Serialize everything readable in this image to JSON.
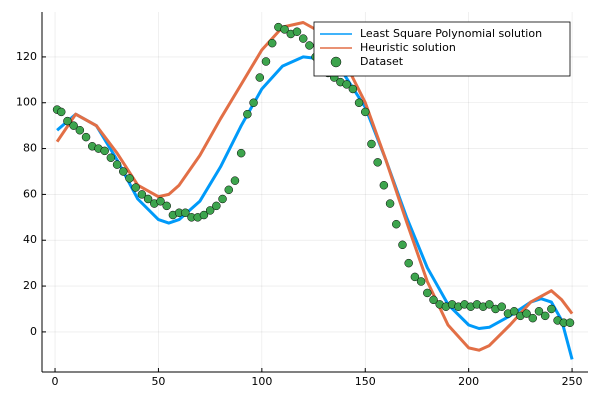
{
  "chart_data": {
    "type": "line",
    "xlim": [
      -6.3,
      257.7
    ],
    "ylim": [
      -17.5,
      139.6
    ],
    "xticks": [
      0,
      50,
      100,
      150,
      200,
      250
    ],
    "yticks": [
      0,
      20,
      40,
      60,
      80,
      100,
      120
    ],
    "grid": true,
    "legend": "top-right",
    "series": [
      {
        "name": "Least Square Polynomial solution",
        "mode": "line",
        "color": "#009af9",
        "x": [
          1,
          10,
          20,
          30,
          40,
          50,
          55,
          60,
          70,
          80,
          90,
          100,
          110,
          120,
          130,
          140,
          150,
          160,
          170,
          180,
          190,
          200,
          205,
          210,
          220,
          230,
          235,
          240,
          245,
          250
        ],
        "values": [
          88,
          95,
          90,
          75,
          58,
          49,
          47.5,
          49,
          57,
          72,
          90,
          106,
          116,
          120,
          119,
          112,
          98,
          75,
          50,
          28,
          12,
          3,
          1.5,
          2,
          7,
          13,
          14.5,
          13,
          5,
          -12
        ]
      },
      {
        "name": "Heuristic solution",
        "mode": "line",
        "color": "#e26f46",
        "x": [
          1,
          10,
          20,
          30,
          40,
          50,
          55,
          60,
          70,
          80,
          90,
          100,
          110,
          120,
          130,
          140,
          150,
          160,
          170,
          180,
          190,
          200,
          205,
          210,
          220,
          230,
          240,
          245,
          250
        ],
        "values": [
          83,
          95,
          90,
          78,
          64,
          59,
          60,
          64,
          77,
          93,
          108,
          123,
          133,
          135,
          130,
          118,
          100,
          75,
          48,
          22,
          3,
          -7,
          -8,
          -6,
          3,
          13,
          18,
          14,
          8
        ]
      },
      {
        "name": "Dataset",
        "mode": "scatter",
        "color": "#3da44d",
        "x": [
          1,
          3,
          6,
          9,
          12,
          15,
          18,
          21,
          24,
          27,
          30,
          33,
          36,
          39,
          42,
          45,
          48,
          51,
          54,
          57,
          60,
          63,
          66,
          69,
          72,
          75,
          78,
          81,
          84,
          87,
          90,
          93,
          96,
          99,
          102,
          105,
          108,
          111,
          114,
          117,
          120,
          123,
          126,
          129,
          132,
          135,
          138,
          141,
          144,
          147,
          150,
          153,
          156,
          159,
          162,
          165,
          168,
          171,
          174,
          177,
          180,
          183,
          186,
          189,
          192,
          195,
          198,
          201,
          204,
          207,
          210,
          213,
          216,
          219,
          222,
          225,
          228,
          231,
          234,
          237,
          240,
          243,
          246,
          249
        ],
        "values": [
          97,
          96,
          92,
          90,
          88,
          85,
          81,
          80,
          79,
          76,
          73,
          70,
          67,
          63,
          60,
          58,
          56,
          57,
          55,
          51,
          52,
          52,
          50,
          50,
          51,
          53,
          55,
          58,
          62,
          66,
          78,
          95,
          100,
          111,
          118,
          126,
          133,
          132,
          130,
          131,
          128,
          125,
          120,
          116,
          113,
          111,
          109,
          108,
          106,
          100,
          96,
          82,
          74,
          64,
          56,
          47,
          38,
          30,
          24,
          22,
          17,
          14,
          12,
          11,
          12,
          11,
          12,
          11,
          12,
          11,
          12,
          10,
          11,
          8,
          9,
          7,
          8,
          6,
          9,
          7,
          10,
          5,
          4,
          4
        ]
      }
    ]
  }
}
